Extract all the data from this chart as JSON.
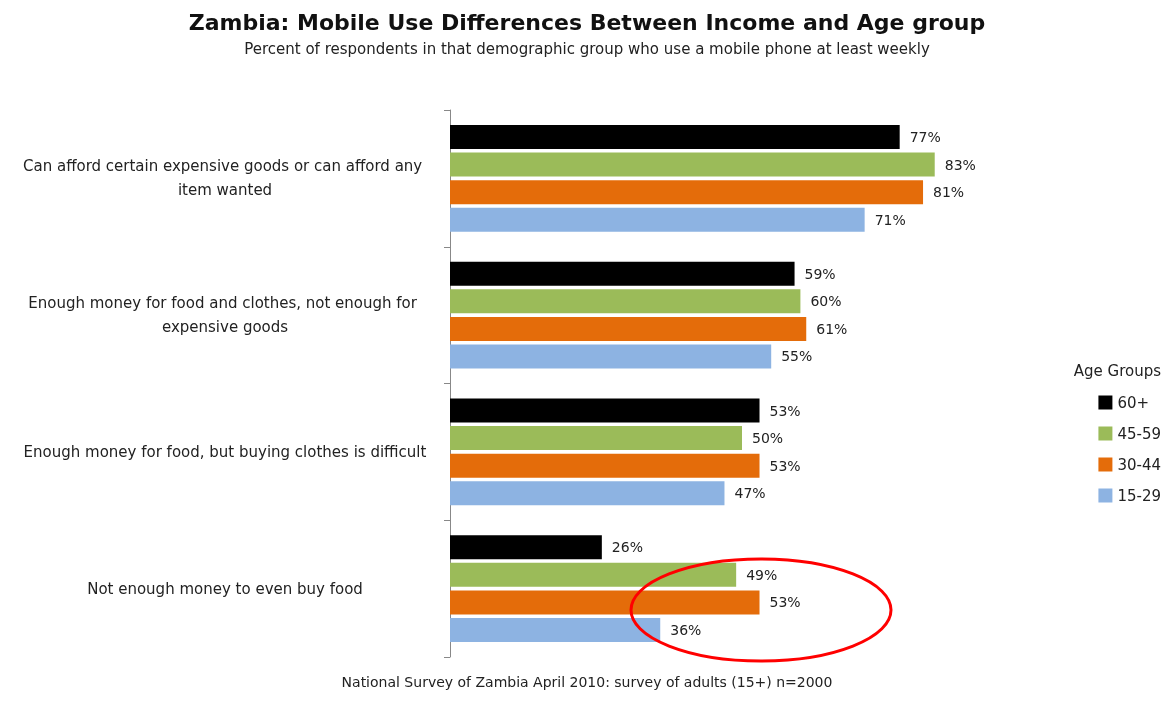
{
  "chart_data": {
    "type": "bar",
    "orientation": "horizontal",
    "title": "Zambia: Mobile Use Differences Between Income and Age group",
    "subtitle": "Percent of respondents in that demographic group who use a mobile phone at least weekly",
    "categories": [
      "Can afford certain expensive goods or can afford any item wanted",
      "Enough money for food and clothes, not enough for expensive goods",
      "Enough money for food, but buying clothes is difficult",
      "Not enough money to even buy food"
    ],
    "series": [
      {
        "name": "60+",
        "color": "#000000",
        "values": [
          77,
          59,
          53,
          26
        ],
        "value_labels": [
          "77%",
          "59%",
          "53%",
          "26%"
        ]
      },
      {
        "name": "45-59",
        "color": "#9bbb59",
        "values": [
          83,
          60,
          50,
          49
        ],
        "value_labels": [
          "83%",
          "60%",
          "50%",
          "49%"
        ]
      },
      {
        "name": "30-44",
        "color": "#e46c0a",
        "values": [
          81,
          61,
          53,
          53
        ],
        "value_labels": [
          "81%",
          "61%",
          "53%",
          "53%"
        ]
      },
      {
        "name": "15-29",
        "color": "#8db3e2",
        "values": [
          71,
          55,
          47,
          36
        ],
        "value_labels": [
          "71%",
          "55%",
          "47%",
          "36%"
        ]
      }
    ],
    "legend": "right",
    "legend_title": "Age Groups",
    "tick_labels": "y",
    "annotations": [
      "National Survey of Zambia April 2010: survey of adults (15+) n=2000"
    ]
  }
}
